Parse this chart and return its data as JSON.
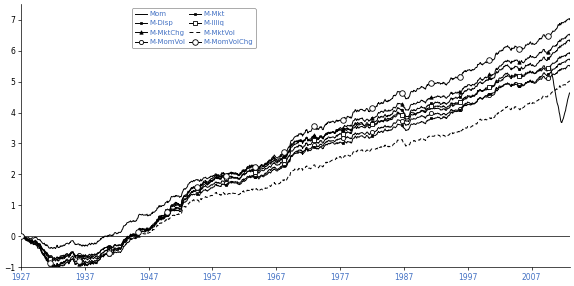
{
  "title": "",
  "xlabel": "",
  "ylabel": "",
  "xlim": [
    1927,
    2013
  ],
  "ylim": [
    -1,
    7.5
  ],
  "yticks": [
    -1,
    0,
    1,
    2,
    3,
    4,
    5,
    6,
    7
  ],
  "xticks": [
    1927,
    1937,
    1947,
    1957,
    1967,
    1977,
    1987,
    1997,
    2007
  ],
  "label_color": "#4472c4",
  "background_color": "#ffffff",
  "line_color": "#000000",
  "series_end_values": {
    "Mom": 4.3,
    "M-Disp": 6.3,
    "M-MktChg": 6.5,
    "M-MomVol": 5.5,
    "M-Mkt": 5.7,
    "M-Illiq": 5.9,
    "M-MktVol": 5.0,
    "M-MomVolChg": 7.0
  }
}
